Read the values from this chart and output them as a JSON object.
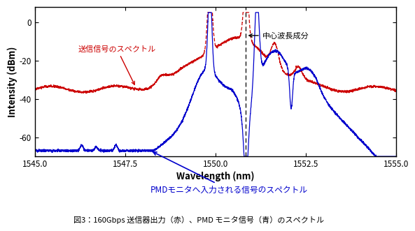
{
  "xlim": [
    1545.0,
    1555.0
  ],
  "ylim": [
    -70,
    8
  ],
  "xticks": [
    1545.0,
    1547.5,
    1550.0,
    1552.5,
    1555.0
  ],
  "yticks": [
    0,
    -20,
    -40,
    -60
  ],
  "xlabel": "Wavelength (nm)",
  "ylabel": "Intensity (dBm)",
  "dashed_x": 1550.85,
  "red_color": "#cc0000",
  "blue_color": "#0000cc",
  "background_color": "#ffffff",
  "plot_bg_color": "#ffffff",
  "annotation_red": "送信信号のスペクトル",
  "annotation_blue": "PMDモニタへ入力される信号のスペクトル",
  "annotation_center": "中心波長成分",
  "caption": "図3：160Gbps 送信器出力（赤）、PMD モニタ信号（青）のスペクトル"
}
